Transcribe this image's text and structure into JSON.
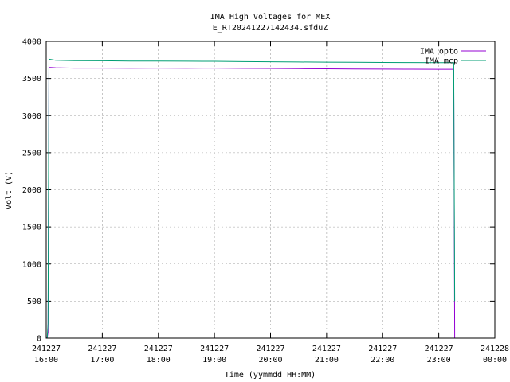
{
  "chart_data": {
    "type": "line",
    "title": "IMA High Voltages for MEX",
    "subtitle": "E_RT20241227142434.sfduZ",
    "xlabel": "Time (yymmdd HH:MM)",
    "ylabel": "Volt (V)",
    "xlim": [
      "2024-12-27 16:00",
      "2024-12-28 00:00"
    ],
    "ylim": [
      0,
      4000
    ],
    "yticks": [
      "0",
      "500",
      "1000",
      "1500",
      "2000",
      "2500",
      "3000",
      "3500",
      "4000"
    ],
    "xticks": [
      {
        "date": "241227",
        "time": "16:00"
      },
      {
        "date": "241227",
        "time": "17:00"
      },
      {
        "date": "241227",
        "time": "18:00"
      },
      {
        "date": "241227",
        "time": "19:00"
      },
      {
        "date": "241227",
        "time": "20:00"
      },
      {
        "date": "241227",
        "time": "21:00"
      },
      {
        "date": "241227",
        "time": "22:00"
      },
      {
        "date": "241227",
        "time": "23:00"
      },
      {
        "date": "241228",
        "time": "00:00"
      }
    ],
    "grid": true,
    "legend_position": "top-right",
    "series": [
      {
        "name": "IMA opto",
        "color": "#9400d3",
        "points": [
          [
            "16:00",
            null
          ],
          [
            "16:01",
            0
          ],
          [
            "16:02",
            80
          ],
          [
            "16:03",
            3650
          ],
          [
            "16:10",
            3645
          ],
          [
            "16:30",
            3640
          ],
          [
            "17:00",
            3640
          ],
          [
            "17:30",
            3638
          ],
          [
            "18:00",
            3640
          ],
          [
            "18:30",
            3638
          ],
          [
            "19:00",
            3640
          ],
          [
            "19:30",
            3636
          ],
          [
            "20:00",
            3635
          ],
          [
            "20:30",
            3632
          ],
          [
            "21:00",
            3630
          ],
          [
            "21:30",
            3628
          ],
          [
            "22:00",
            3626
          ],
          [
            "22:30",
            3625
          ],
          [
            "23:00",
            3624
          ],
          [
            "23:16",
            3624
          ],
          [
            "23:17",
            0
          ]
        ]
      },
      {
        "name": "IMA mcp",
        "color": "#009e73",
        "points": [
          [
            "16:01",
            0
          ],
          [
            "16:02",
            200
          ],
          [
            "16:03",
            3760
          ],
          [
            "16:05",
            3755
          ],
          [
            "16:10",
            3745
          ],
          [
            "16:30",
            3740
          ],
          [
            "17:00",
            3738
          ],
          [
            "17:30",
            3735
          ],
          [
            "18:00",
            3735
          ],
          [
            "18:30",
            3733
          ],
          [
            "19:00",
            3732
          ],
          [
            "19:30",
            3728
          ],
          [
            "20:00",
            3725
          ],
          [
            "20:30",
            3722
          ],
          [
            "21:00",
            3720
          ],
          [
            "21:30",
            3718
          ],
          [
            "22:00",
            3716
          ],
          [
            "22:30",
            3715
          ],
          [
            "23:00",
            3714
          ],
          [
            "23:16",
            3714
          ],
          [
            "23:17",
            500
          ]
        ]
      }
    ]
  }
}
